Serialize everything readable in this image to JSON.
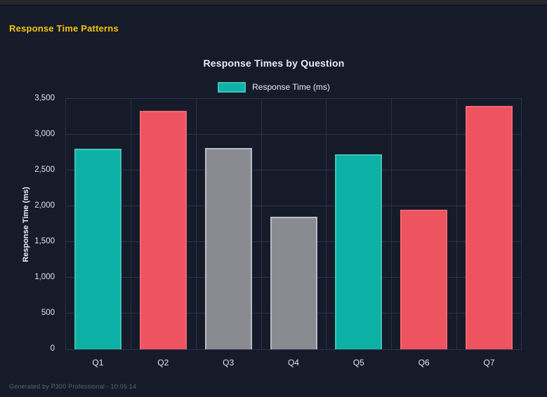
{
  "page": {
    "title": "Response Time Patterns",
    "footer": "Generated by P300 Professional - 10:05:14"
  },
  "theme": {
    "background": "#161b2a",
    "top_strip": "#26272b",
    "accent_yellow": "#f1c40f",
    "text": "#e9edf2",
    "tick_text": "#dfe3ea",
    "grid": "#2b3248",
    "muted_text": "#5a6273"
  },
  "chart_data": {
    "type": "bar",
    "title": "Response Times by Question",
    "legend": {
      "label": "Response Time (ms)",
      "color_key": "teal",
      "position": "top"
    },
    "categories": [
      "Q1",
      "Q2",
      "Q3",
      "Q4",
      "Q5",
      "Q6",
      "Q7"
    ],
    "values": [
      2800,
      3330,
      2810,
      1850,
      2730,
      1950,
      3400
    ],
    "bar_color_keys": [
      "teal",
      "red",
      "gray",
      "gray",
      "teal",
      "red",
      "red"
    ],
    "palette": {
      "teal": {
        "fill": "#0db1a6",
        "border": "#3ec3b8"
      },
      "red": {
        "fill": "#ee5360",
        "border": "#f36571"
      },
      "gray": {
        "fill": "#8a8a91",
        "border": "#babbc3"
      }
    },
    "xlabel": "",
    "ylabel": "Response Time (ms)",
    "ylim": [
      0,
      3500
    ],
    "ytick_labels": [
      "0",
      "500",
      "1,000",
      "1,500",
      "2,000",
      "2,500",
      "3,000",
      "3,500"
    ],
    "grid": true
  }
}
